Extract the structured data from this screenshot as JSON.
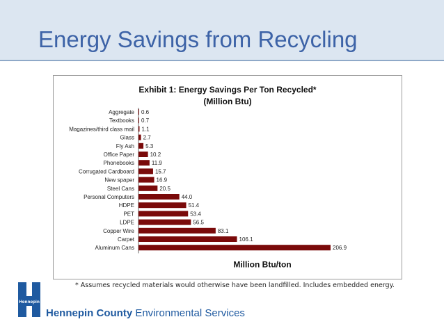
{
  "slide": {
    "title": "Energy Savings from Recycling",
    "footnote": "* Assumes recycled materials would otherwise have been landfilled. Includes embedded energy.",
    "org_name": "Hennepin County",
    "org_dept": " Environmental Services",
    "logo_text": "Hennepin"
  },
  "colors": {
    "bar": "#7a0a0a",
    "title": "#3d63a7",
    "org": "#1f5aa0",
    "header_bg": "#dce6f1"
  },
  "chart_data": {
    "type": "bar",
    "orientation": "horizontal",
    "title": "Exhibit 1: Energy Savings Per Ton Recycled*",
    "subtitle": "(Million Btu)",
    "xlabel": "Million Btu/ton",
    "categories": [
      "Aggregate",
      "Textbooks",
      "Magazines/third class mail",
      "Glass",
      "Fly Ash",
      "Office Paper",
      "Phonebooks",
      "Corrugated Cardboard",
      "New spaper",
      "Steel Cans",
      "Personal Computers",
      "HDPE",
      "PET",
      "LDPE",
      "Copper Wire",
      "Carpet",
      "Aluminum Cans"
    ],
    "values": [
      0.6,
      0.7,
      1.1,
      2.7,
      5.3,
      10.2,
      11.9,
      15.7,
      16.9,
      20.5,
      44.0,
      51.4,
      53.4,
      56.5,
      83.1,
      106.1,
      206.9
    ],
    "value_labels": [
      "0.6",
      "0.7",
      "1.1",
      "2.7",
      "5.3",
      "10.2",
      "11.9",
      "15.7",
      "16.9",
      "20.5",
      "44.0",
      "51.4",
      "53.4",
      "56.5",
      "83.1",
      "106.1",
      "206.9"
    ],
    "xlim": [
      0,
      206.9
    ],
    "grid": false,
    "legend": "none"
  }
}
